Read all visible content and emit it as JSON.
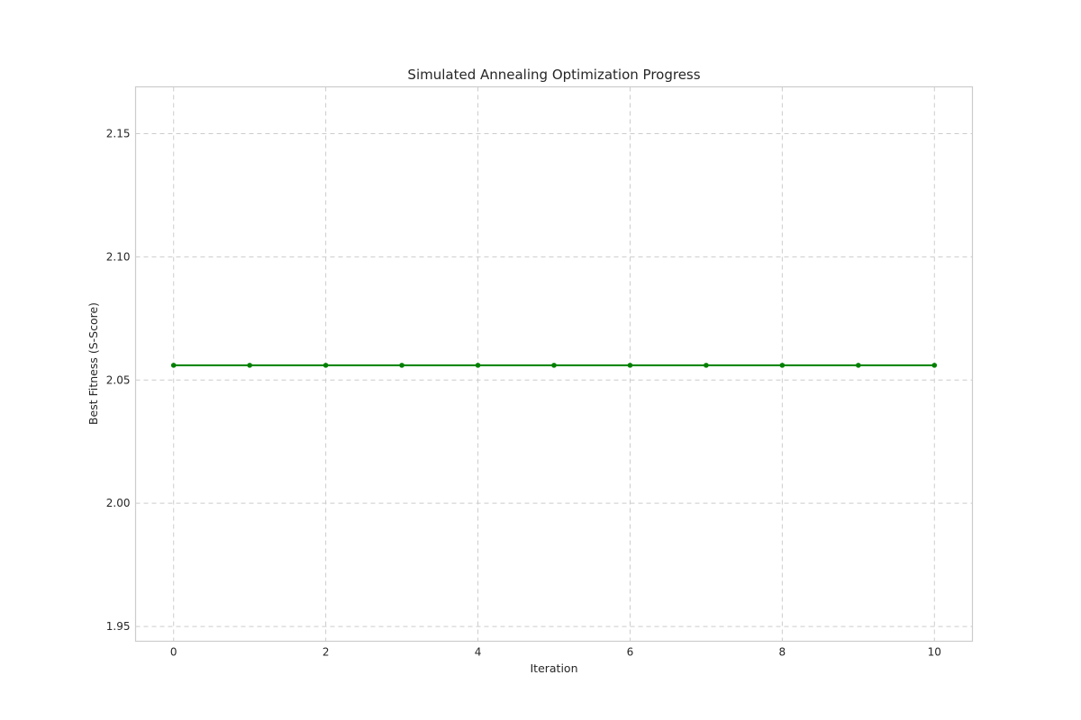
{
  "chart_data": {
    "type": "line",
    "title": "Simulated Annealing Optimization Progress",
    "xlabel": "Iteration",
    "ylabel": "Best Fitness (S-Score)",
    "x": [
      0,
      1,
      2,
      3,
      4,
      5,
      6,
      7,
      8,
      9,
      10
    ],
    "series": [
      {
        "values": [
          2.056,
          2.056,
          2.056,
          2.056,
          2.056,
          2.056,
          2.056,
          2.056,
          2.056,
          2.056,
          2.056
        ],
        "color": "#008000"
      }
    ],
    "xlim": [
      -0.5,
      10.5
    ],
    "ylim": [
      1.944,
      2.169
    ],
    "xticks": [
      0,
      2,
      4,
      6,
      8,
      10
    ],
    "xtick_labels": [
      "0",
      "2",
      "4",
      "6",
      "8",
      "10"
    ],
    "yticks": [
      1.95,
      2.0,
      2.05,
      2.1,
      2.15
    ],
    "ytick_labels": [
      "1.95",
      "2.00",
      "2.05",
      "2.10",
      "2.15"
    ],
    "grid": true,
    "marker": "circle"
  }
}
